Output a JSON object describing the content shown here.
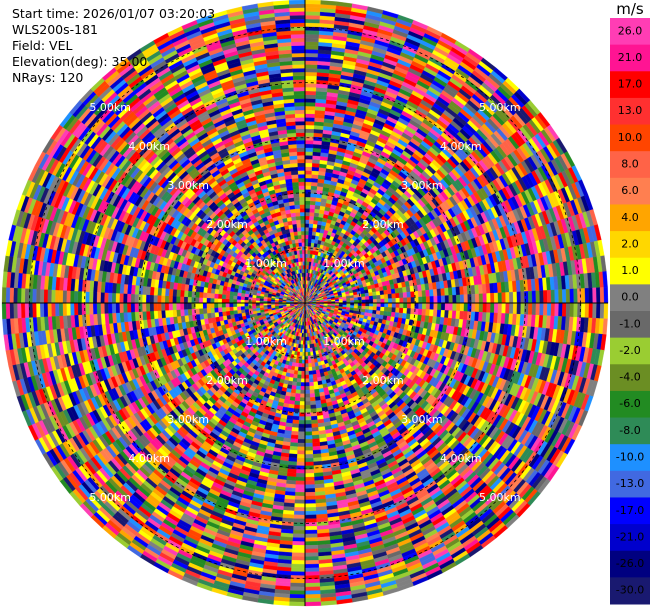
{
  "header": {
    "start_time": "Start time: 2026/01/07 03:20:03",
    "instrument": "WLS200s-181",
    "field": "Field: VEL",
    "elevation": "Elevation(deg): 35.00",
    "nrays": "NRays: 120"
  },
  "colorbar": {
    "unit": "m/s",
    "ticks": [
      "26.0",
      "21.0",
      "17.0",
      "13.0",
      "10.0",
      "8.0",
      "6.0",
      "4.0",
      "2.0",
      "1.0",
      "0.0",
      "-1.0",
      "-2.0",
      "-4.0",
      "-6.0",
      "-8.0",
      "-10.0",
      "-13.0",
      "-17.0",
      "-21.0",
      "-26.0",
      "-30.0"
    ],
    "colors": [
      "#ff3db4",
      "#ff1493",
      "#ff0000",
      "#ff3030",
      "#ff4500",
      "#ff6347",
      "#ff7f50",
      "#ffa500",
      "#ffd700",
      "#ffff00",
      "#808080",
      "#696969",
      "#9acd32",
      "#6b8e23",
      "#228b22",
      "#2e8b57",
      "#1e90ff",
      "#4169e1",
      "#0000ff",
      "#0000cd",
      "#000080",
      "#191970"
    ]
  },
  "chart_data": {
    "type": "ppi",
    "field": "VEL",
    "nrays": 120,
    "elevation_deg": 35.0,
    "range_rings_km": [
      1.0,
      2.0,
      3.0,
      4.0,
      5.0
    ],
    "range_ring_labels": [
      "1.00km",
      "2.00km",
      "3.00km",
      "4.00km",
      "5.00km"
    ],
    "max_range_km": 5.5,
    "value_range": [
      -30.0,
      26.0
    ]
  }
}
